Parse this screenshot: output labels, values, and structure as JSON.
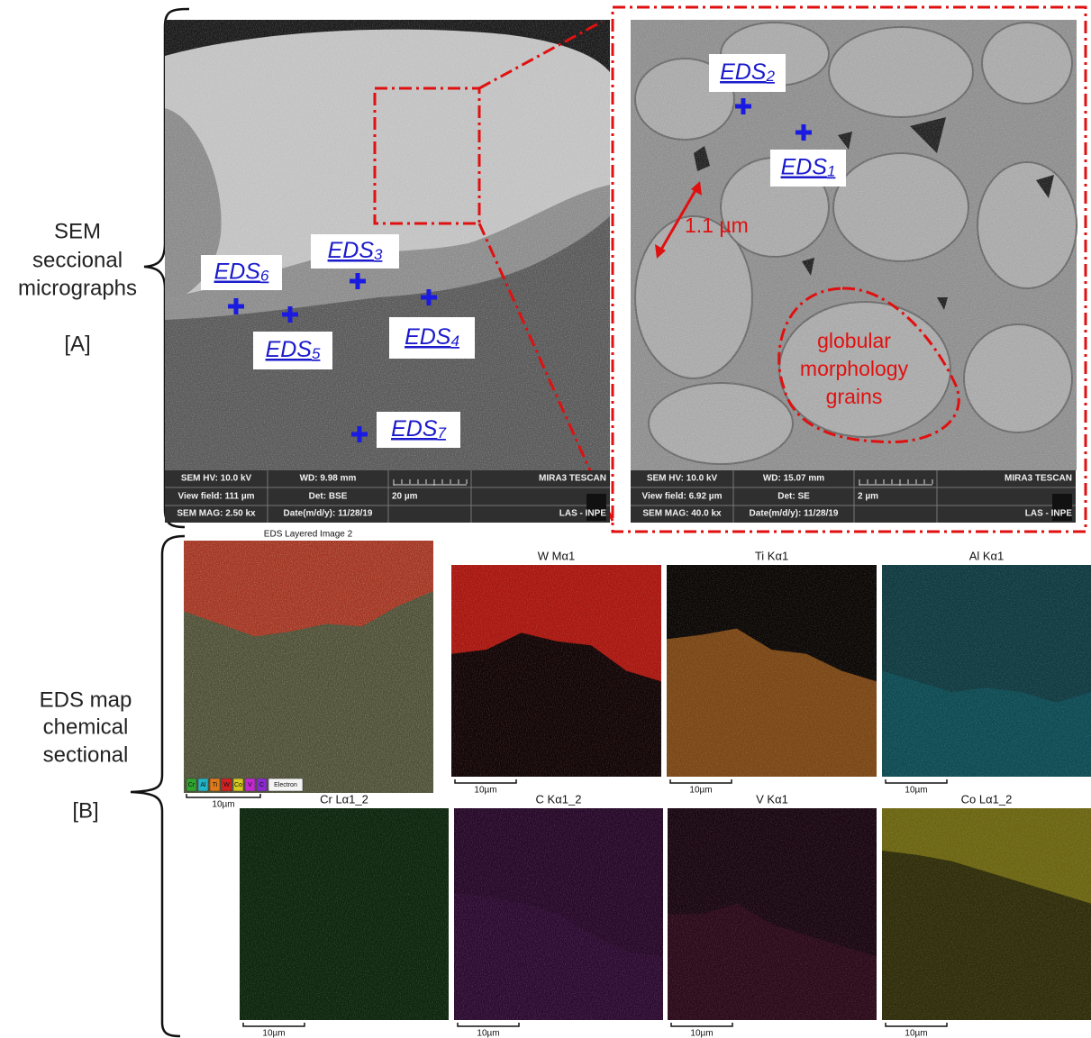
{
  "section_a": {
    "label": [
      "SEM",
      "seccional",
      "micrographs"
    ],
    "tag": "[A]"
  },
  "sem_bse": {
    "markers": [
      {
        "base": "EDS",
        "sub": "6"
      },
      {
        "base": "EDS",
        "sub": "3"
      },
      {
        "base": "EDS",
        "sub": "5"
      },
      {
        "base": "EDS",
        "sub": "4"
      },
      {
        "base": "EDS",
        "sub": "7"
      }
    ],
    "info": [
      [
        "SEM HV: 10.0 kV",
        "WD: 9.98 mm",
        "MIRA3 TESCAN"
      ],
      [
        "View field: 111 µm",
        "Det: BSE",
        "20 µm"
      ],
      [
        "SEM MAG: 2.50 kx",
        "Date(m/d/y): 11/28/19",
        "LAS - INPE"
      ]
    ]
  },
  "sem_se": {
    "markers": [
      {
        "base": "EDS",
        "sub": "2"
      },
      {
        "base": "EDS",
        "sub": "1"
      }
    ],
    "distance": "1.1 µm",
    "annotation": [
      "globular",
      "morphology",
      "grains"
    ],
    "info": [
      [
        "SEM HV: 10.0 kV",
        "WD: 15.07 mm",
        "MIRA3 TESCAN"
      ],
      [
        "View field: 6.92 µm",
        "Det: SE",
        "2 µm"
      ],
      [
        "SEM MAG: 40.0 kx",
        "Date(m/d/y): 11/28/19",
        "LAS - INPE"
      ]
    ]
  },
  "section_b": {
    "label": [
      "EDS map",
      "chemical",
      "sectional"
    ],
    "tag": "[B]"
  },
  "eds_layered": {
    "title": "EDS Layered Image 2",
    "legend": [
      "Cr",
      "Al",
      "Ti",
      "W",
      "Co",
      "V",
      "C",
      "Electron"
    ],
    "scale": "10µm"
  },
  "eds_maps": [
    {
      "title": "W Mα1",
      "scale": "10µm"
    },
    {
      "title": "Ti Kα1",
      "scale": "10µm"
    },
    {
      "title": "Al Kα1",
      "scale": "10µm"
    },
    {
      "title": "Cr Lα1_2",
      "scale": "10µm"
    },
    {
      "title": "C Kα1_2",
      "scale": "10µm"
    },
    {
      "title": "V Kα1",
      "scale": "10µm"
    },
    {
      "title": "Co Lα1_2",
      "scale": "10µm"
    }
  ]
}
